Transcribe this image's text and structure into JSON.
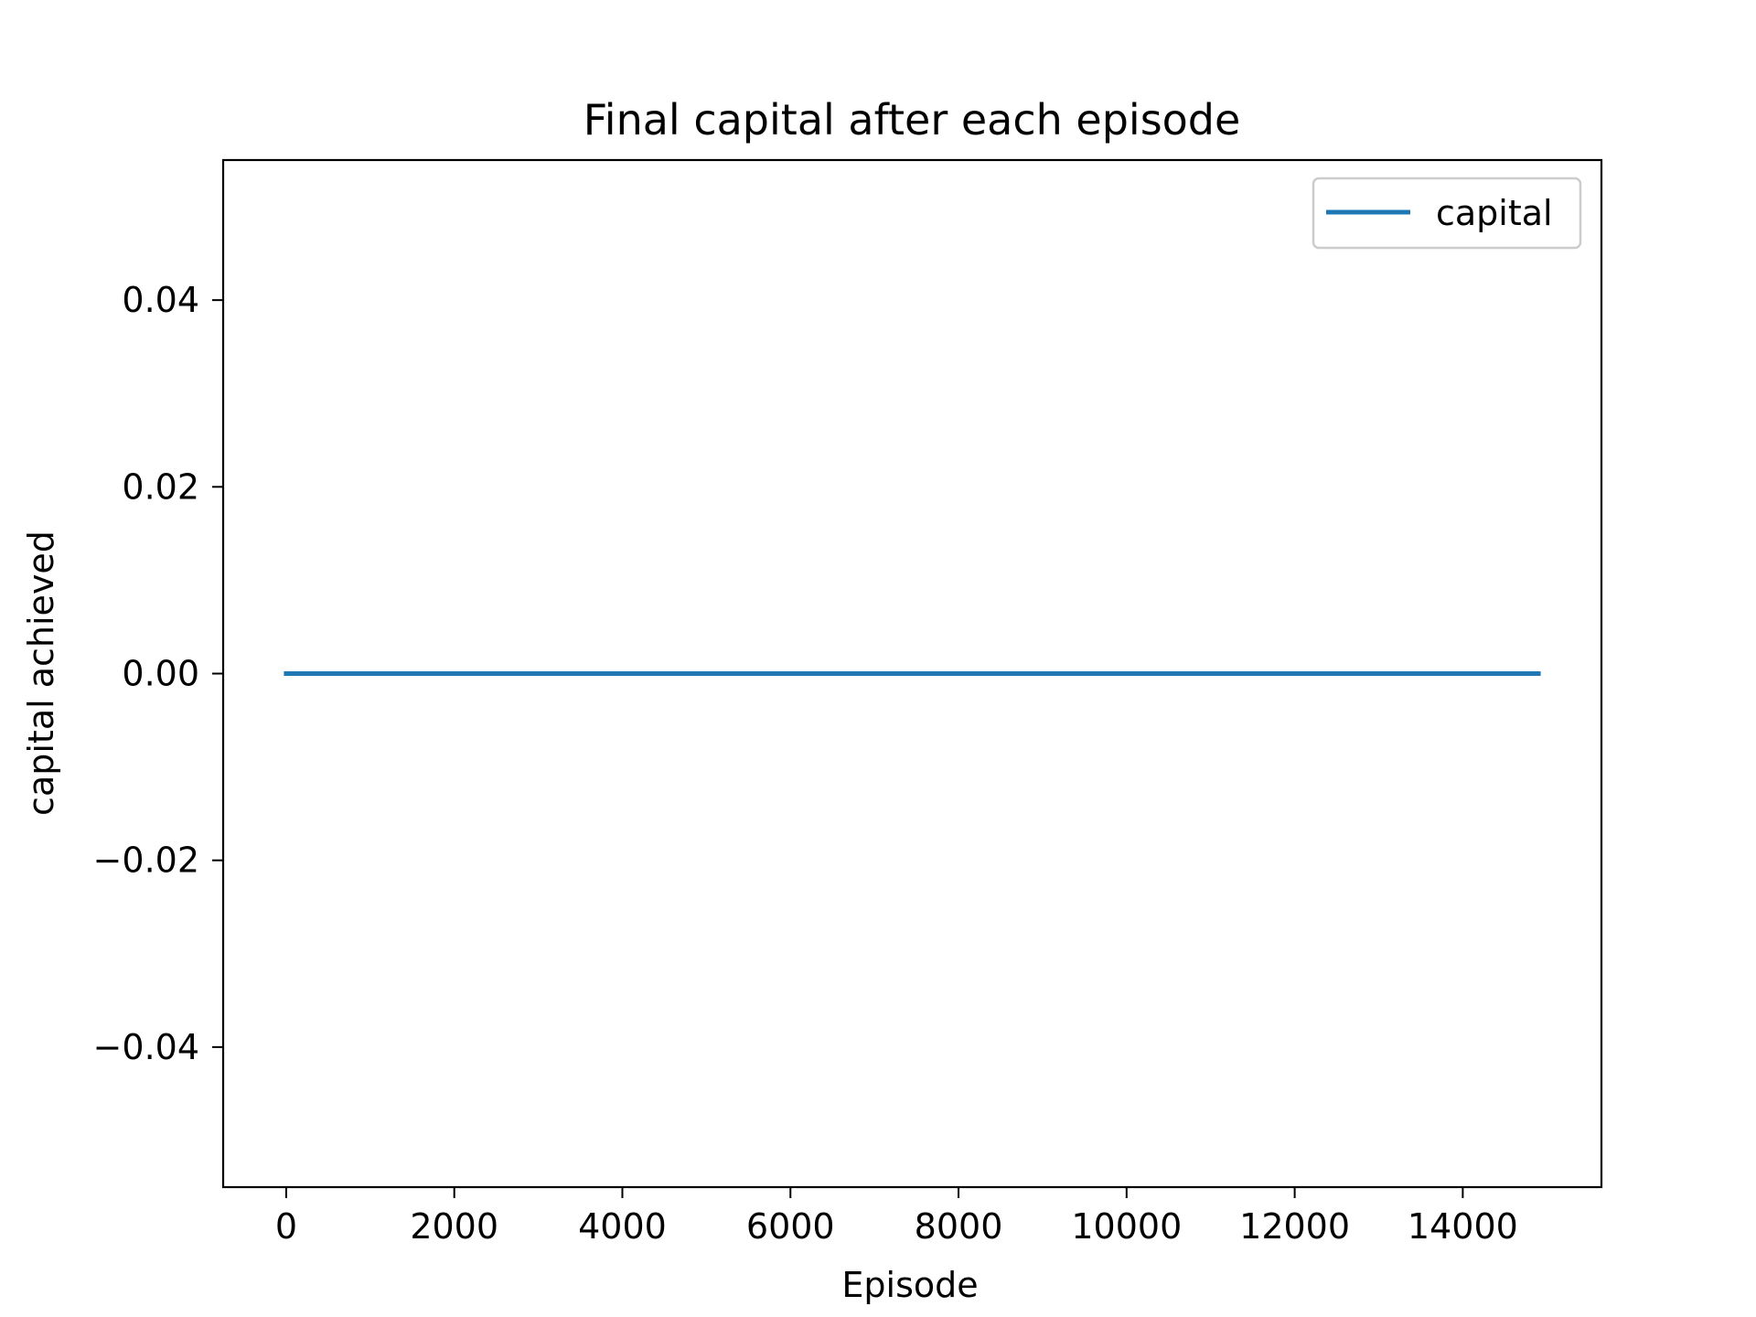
{
  "chart_data": {
    "type": "line",
    "title": "Final capital after each episode",
    "xlabel": "Episode",
    "ylabel": "capital achieved",
    "xlim": [
      -750,
      15650
    ],
    "ylim": [
      -0.055,
      0.055
    ],
    "x_ticks": [
      0,
      2000,
      4000,
      6000,
      8000,
      10000,
      12000,
      14000
    ],
    "x_tick_labels": [
      "0",
      "2000",
      "4000",
      "6000",
      "8000",
      "10000",
      "12000",
      "14000"
    ],
    "y_ticks": [
      -0.04,
      -0.02,
      0.0,
      0.02,
      0.04
    ],
    "y_tick_labels": [
      "−0.04",
      "−0.02",
      "0.00",
      "0.02",
      "0.04"
    ],
    "grid": false,
    "legend_position": "top-right",
    "series": [
      {
        "name": "capital",
        "color": "#1f77b4",
        "x": [
          0,
          14900
        ],
        "y": [
          0.0,
          0.0
        ]
      }
    ]
  }
}
